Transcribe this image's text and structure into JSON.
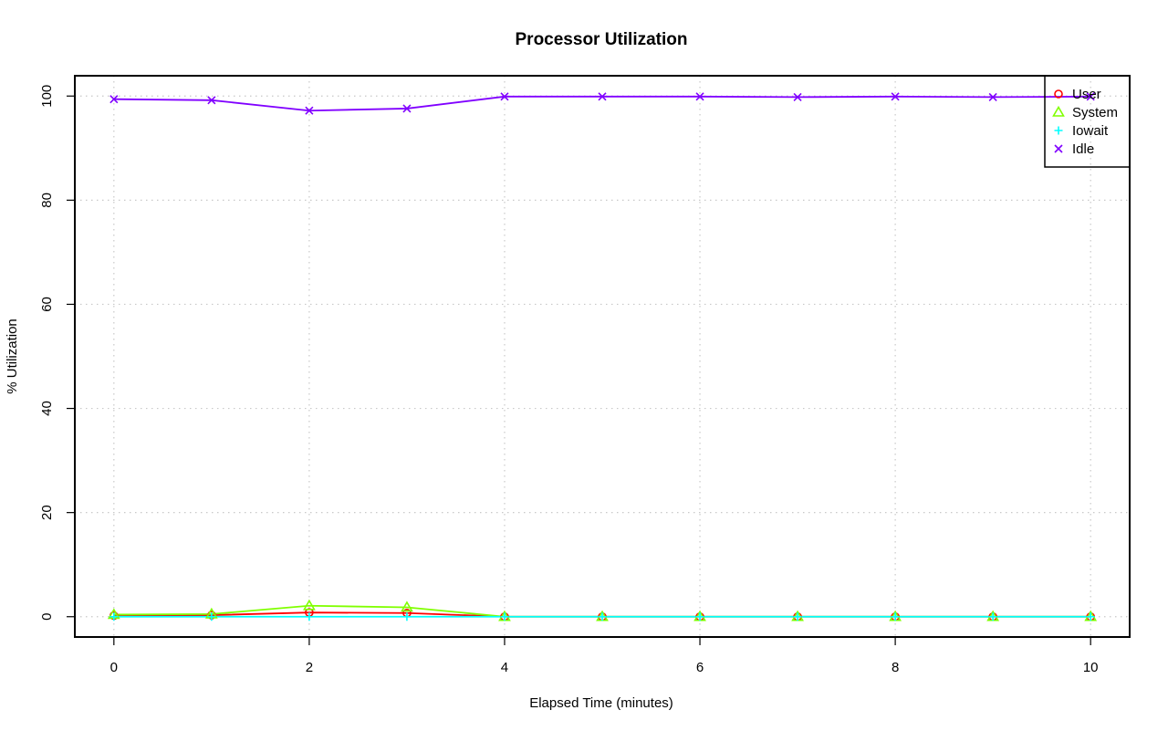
{
  "chart_data": {
    "type": "line",
    "title": "Processor Utilization",
    "xlabel": "Elapsed Time (minutes)",
    "ylabel": "% Utilization",
    "x": [
      0,
      1,
      2,
      3,
      4,
      5,
      6,
      7,
      8,
      9,
      10
    ],
    "xlim": [
      -0.4,
      10.4
    ],
    "ylim": [
      -3.9,
      103.9
    ],
    "xticks": [
      0,
      2,
      4,
      6,
      8,
      10
    ],
    "yticks": [
      0,
      20,
      40,
      60,
      80,
      100
    ],
    "grid": true,
    "legend_position": "top-right",
    "series": [
      {
        "name": "User",
        "color": "#ff0000",
        "marker": "circle",
        "values": [
          0.2,
          0.3,
          0.8,
          0.7,
          0.0,
          0.0,
          0.0,
          0.0,
          0.0,
          0.0,
          0.0
        ]
      },
      {
        "name": "System",
        "color": "#80ff00",
        "marker": "triangle",
        "values": [
          0.4,
          0.5,
          2.1,
          1.8,
          0.0,
          0.0,
          0.0,
          0.0,
          0.0,
          0.0,
          0.0
        ]
      },
      {
        "name": "Iowait",
        "color": "#00ffff",
        "marker": "plus",
        "values": [
          0.0,
          0.0,
          0.0,
          0.0,
          0.0,
          0.0,
          0.0,
          0.0,
          0.0,
          0.0,
          0.0
        ]
      },
      {
        "name": "Idle",
        "color": "#8000ff",
        "marker": "cross",
        "values": [
          99.4,
          99.2,
          97.2,
          97.6,
          99.9,
          99.9,
          99.9,
          99.8,
          99.9,
          99.8,
          99.9
        ]
      }
    ]
  }
}
